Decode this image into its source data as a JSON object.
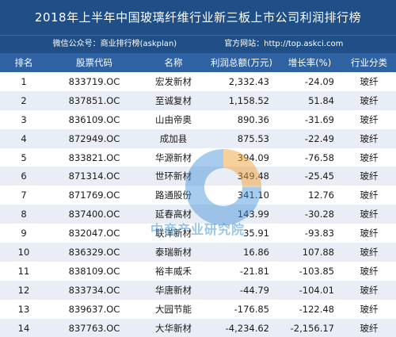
{
  "header": {
    "title": "2018年上半年中国玻璃纤维行业新三板上市公司利润排行榜",
    "wechat": "微信公众号：商业排行榜(askplan)",
    "website": "官方网站：http://top.askci.com"
  },
  "table": {
    "columns": [
      "排名",
      "股票代码",
      "名称",
      "利润总额(万元)",
      "增长率(%)",
      "行业分类"
    ],
    "rows": [
      {
        "rank": "1",
        "code": "833719.OC",
        "name": "宏发新材",
        "profit": "2,332.43",
        "growth": "-24.09",
        "industry": "玻纤"
      },
      {
        "rank": "2",
        "code": "837851.OC",
        "name": "至诚复材",
        "profit": "1,158.52",
        "growth": "51.84",
        "industry": "玻纤"
      },
      {
        "rank": "3",
        "code": "836109.OC",
        "name": "山由帝奥",
        "profit": "890.36",
        "growth": "-31.69",
        "industry": "玻纤"
      },
      {
        "rank": "4",
        "code": "872949.OC",
        "name": "成加县",
        "profit": "875.53",
        "growth": "-22.49",
        "industry": "玻纤"
      },
      {
        "rank": "5",
        "code": "833821.OC",
        "name": "华源新材",
        "profit": "394.09",
        "growth": "-76.58",
        "industry": "玻纤"
      },
      {
        "rank": "6",
        "code": "871314.OC",
        "name": "世环新材",
        "profit": "349.48",
        "growth": "-25.45",
        "industry": "玻纤"
      },
      {
        "rank": "7",
        "code": "871769.OC",
        "name": "路通股份",
        "profit": "341.10",
        "growth": "12.76",
        "industry": "玻纤"
      },
      {
        "rank": "8",
        "code": "837400.OC",
        "name": "延春高材",
        "profit": "143.99",
        "growth": "-30.28",
        "industry": "玻纤"
      },
      {
        "rank": "9",
        "code": "832047.OC",
        "name": "联洋新材",
        "profit": "35.91",
        "growth": "-93.83",
        "industry": "玻纤"
      },
      {
        "rank": "10",
        "code": "836329.OC",
        "name": "泰瑞新材",
        "profit": "16.86",
        "growth": "107.88",
        "industry": "玻纤"
      },
      {
        "rank": "11",
        "code": "838109.OC",
        "name": "裕丰威禾",
        "profit": "-21.81",
        "growth": "-103.85",
        "industry": "玻纤"
      },
      {
        "rank": "12",
        "code": "833734.OC",
        "name": "华唐新材",
        "profit": "-44.79",
        "growth": "-104.01",
        "industry": "玻纤"
      },
      {
        "rank": "13",
        "code": "839637.OC",
        "name": "大园节能",
        "profit": "-176.85",
        "growth": "-122.48",
        "industry": "玻纤"
      },
      {
        "rank": "14",
        "code": "837763.OC",
        "name": "大华新材",
        "profit": "-4,234.62",
        "growth": "-2,156.17",
        "industry": "玻纤"
      }
    ]
  },
  "watermark": {
    "text": "中商产业研究院",
    "colors": {
      "blue": "#3f8fd8",
      "orange": "#f2a23a"
    }
  },
  "colors": {
    "title_bg": "#1f4f86",
    "header_bg": "#2e62a3",
    "alt_row": "#e9edf5"
  }
}
